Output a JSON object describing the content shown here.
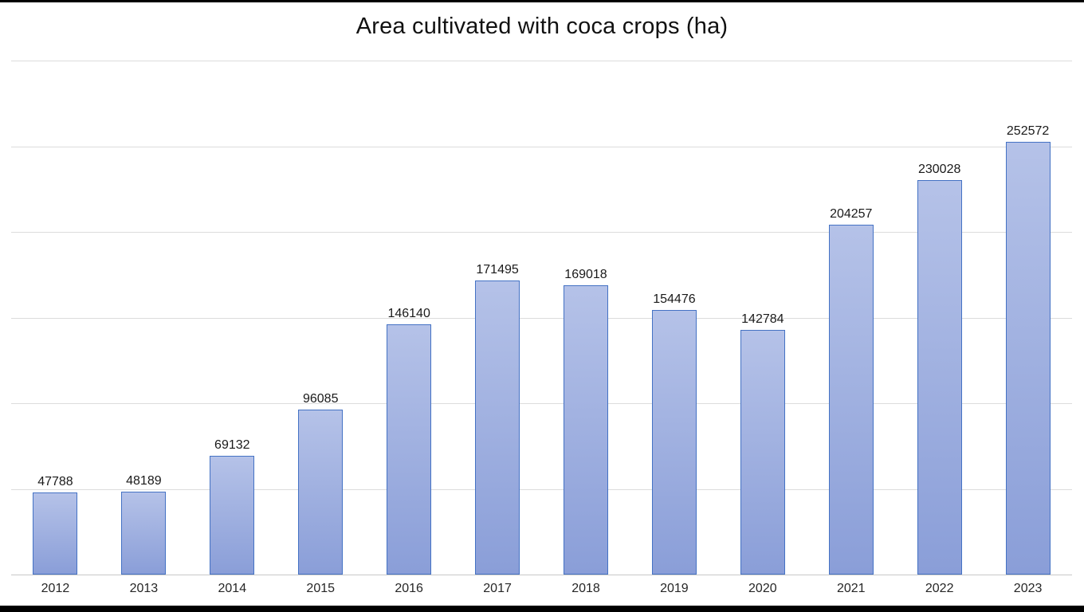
{
  "frame": {
    "background": "#ffffff",
    "letterbox_color": "#000000"
  },
  "chart_data": {
    "type": "bar",
    "title": "Area cultivated with coca crops (ha)",
    "categories": [
      "2012",
      "2013",
      "2014",
      "2015",
      "2016",
      "2017",
      "2018",
      "2019",
      "2020",
      "2021",
      "2022",
      "2023"
    ],
    "values": [
      47788,
      48189,
      69132,
      96085,
      146140,
      171495,
      169018,
      154476,
      142784,
      204257,
      230028,
      252572
    ],
    "xlabel": "",
    "ylabel": "",
    "ylim": [
      0,
      300000
    ],
    "gridline_step": 50000,
    "grid": true,
    "y_tick_labels_visible": false,
    "data_labels_position": "above-bars",
    "legend_position": "none",
    "colors": {
      "bar_fill_top": "#b5c2e8",
      "bar_fill_bottom": "#8a9ed8",
      "bar_border": "#4472c4",
      "gridline": "#dcdcdc",
      "axis_line": "#c8c8c8",
      "title_text": "#111111",
      "label_text": "#1a1a1a"
    }
  }
}
